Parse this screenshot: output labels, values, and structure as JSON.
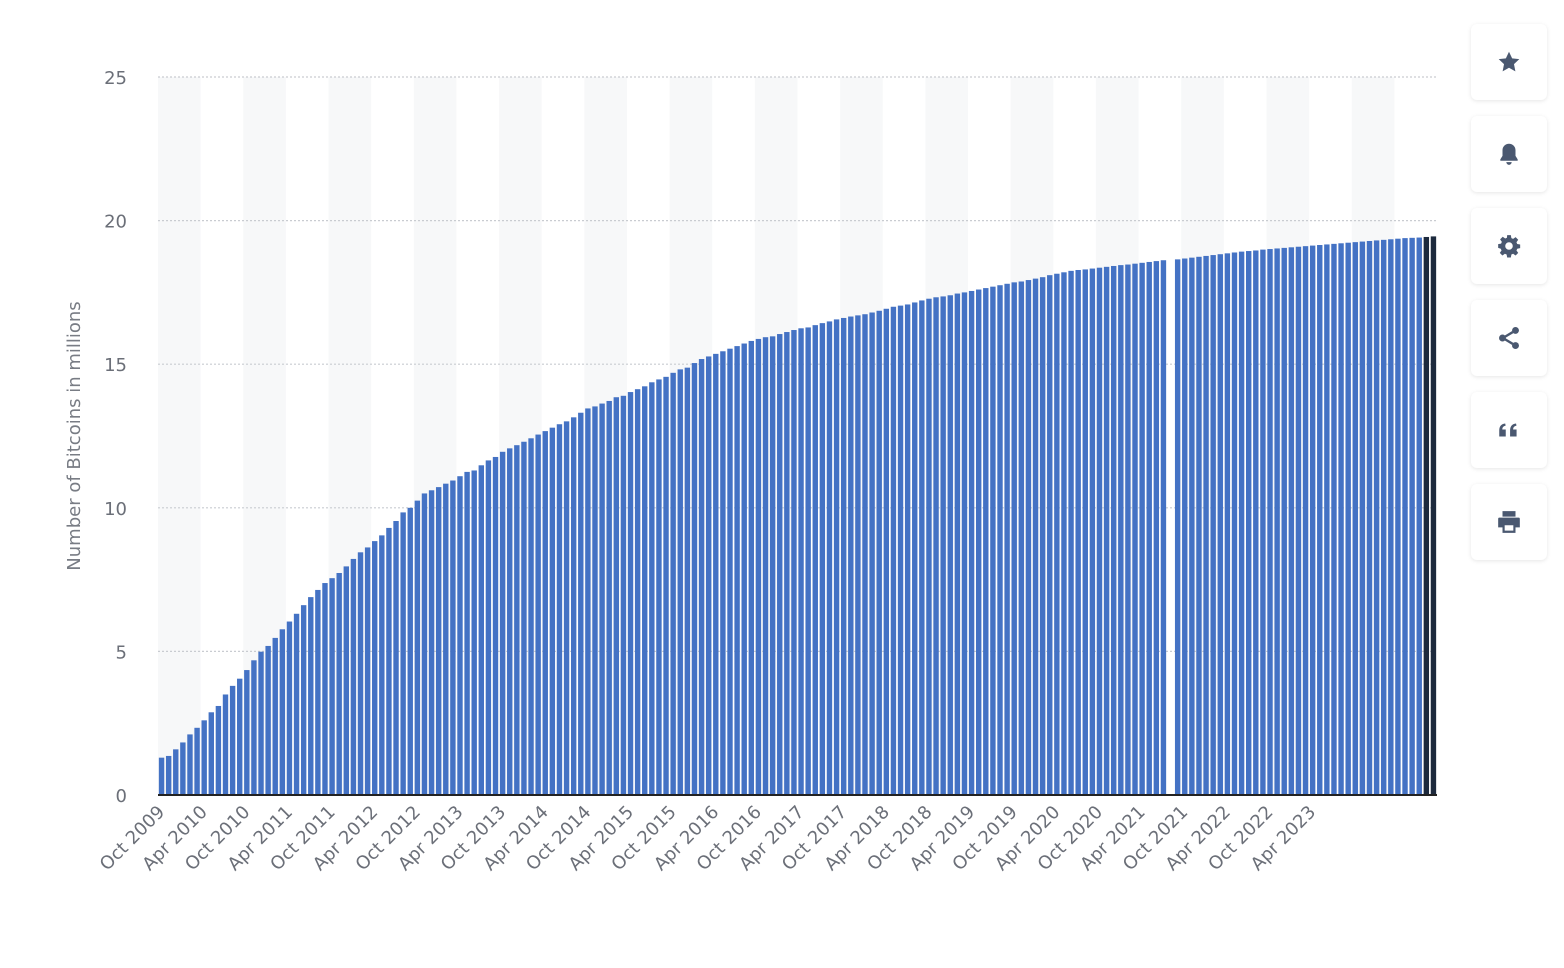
{
  "chart_data": {
    "type": "bar",
    "title": "",
    "xlabel": "",
    "ylabel": "Number of Bitcoins in millions",
    "ylim": [
      0,
      25
    ],
    "yticks": [
      0,
      5,
      10,
      15,
      20,
      25
    ],
    "grid": true,
    "legend": "none",
    "x_start": "Oct 2009",
    "x_step_months": 1,
    "tick_labels": [
      "Oct 2009",
      "Apr 2010",
      "Oct 2010",
      "Apr 2011",
      "Oct 2011",
      "Apr 2012",
      "Oct 2012",
      "Apr 2013",
      "Oct 2013",
      "Apr 2014",
      "Oct 2014",
      "Apr 2015",
      "Oct 2015",
      "Apr 2016",
      "Oct 2016",
      "Apr 2017",
      "Oct 2017",
      "Apr 2018",
      "Oct 2018",
      "Apr 2019",
      "Oct 2019",
      "Apr 2020",
      "Oct 2020",
      "Apr 2021",
      "Oct 2021",
      "Apr 2022",
      "Oct 2022",
      "Apr 2023"
    ],
    "values": [
      1.3,
      1.36,
      1.59,
      1.83,
      2.11,
      2.34,
      2.6,
      2.88,
      3.1,
      3.5,
      3.8,
      4.05,
      4.35,
      4.69,
      4.99,
      5.19,
      5.47,
      5.77,
      6.04,
      6.31,
      6.61,
      6.89,
      7.14,
      7.38,
      7.55,
      7.73,
      7.96,
      8.22,
      8.45,
      8.62,
      8.84,
      9.04,
      9.3,
      9.54,
      9.84,
      10.0,
      10.25,
      10.5,
      10.61,
      10.72,
      10.84,
      10.95,
      11.1,
      11.25,
      11.3,
      11.48,
      11.65,
      11.77,
      11.95,
      12.07,
      12.18,
      12.3,
      12.42,
      12.55,
      12.67,
      12.79,
      12.91,
      13.01,
      13.15,
      13.31,
      13.46,
      13.53,
      13.63,
      13.72,
      13.85,
      13.9,
      14.03,
      14.13,
      14.23,
      14.37,
      14.47,
      14.56,
      14.7,
      14.82,
      14.88,
      15.04,
      15.18,
      15.27,
      15.36,
      15.45,
      15.54,
      15.63,
      15.72,
      15.81,
      15.88,
      15.94,
      15.97,
      16.05,
      16.12,
      16.19,
      16.25,
      16.28,
      16.36,
      16.43,
      16.49,
      16.56,
      16.61,
      16.66,
      16.7,
      16.74,
      16.8,
      16.86,
      16.93,
      17.0,
      17.04,
      17.08,
      17.15,
      17.22,
      17.28,
      17.33,
      17.36,
      17.4,
      17.46,
      17.5,
      17.55,
      17.6,
      17.65,
      17.7,
      17.75,
      17.8,
      17.85,
      17.88,
      17.93,
      17.98,
      18.03,
      18.1,
      18.15,
      18.2,
      18.25,
      18.28,
      18.3,
      18.33,
      18.36,
      18.39,
      18.42,
      18.45,
      18.47,
      18.5,
      18.53,
      18.56,
      18.59,
      18.62,
      0,
      18.65,
      18.68,
      18.71,
      18.74,
      18.77,
      18.8,
      18.83,
      18.86,
      18.89,
      18.92,
      18.94,
      18.96,
      18.99,
      19.01,
      19.03,
      19.05,
      19.07,
      19.09,
      19.11,
      19.13,
      19.15,
      19.17,
      19.19,
      19.21,
      19.23,
      19.25,
      19.27,
      19.29,
      19.31,
      19.33,
      19.35,
      19.37,
      19.39,
      19.4,
      19.41,
      19.43,
      19.45
    ],
    "highlight_last": 2
  },
  "colors": {
    "bar": "#4472c4",
    "bar_highlight": "#1d2a3d",
    "grid": "#c9ccd1",
    "band": "#f7f8f9",
    "axis": "#222222",
    "toolbar_icon": "#4a5870"
  },
  "toolbar": {
    "icons": [
      "star-icon",
      "bell-icon",
      "gear-icon",
      "share-icon",
      "quote-icon",
      "print-icon"
    ]
  }
}
